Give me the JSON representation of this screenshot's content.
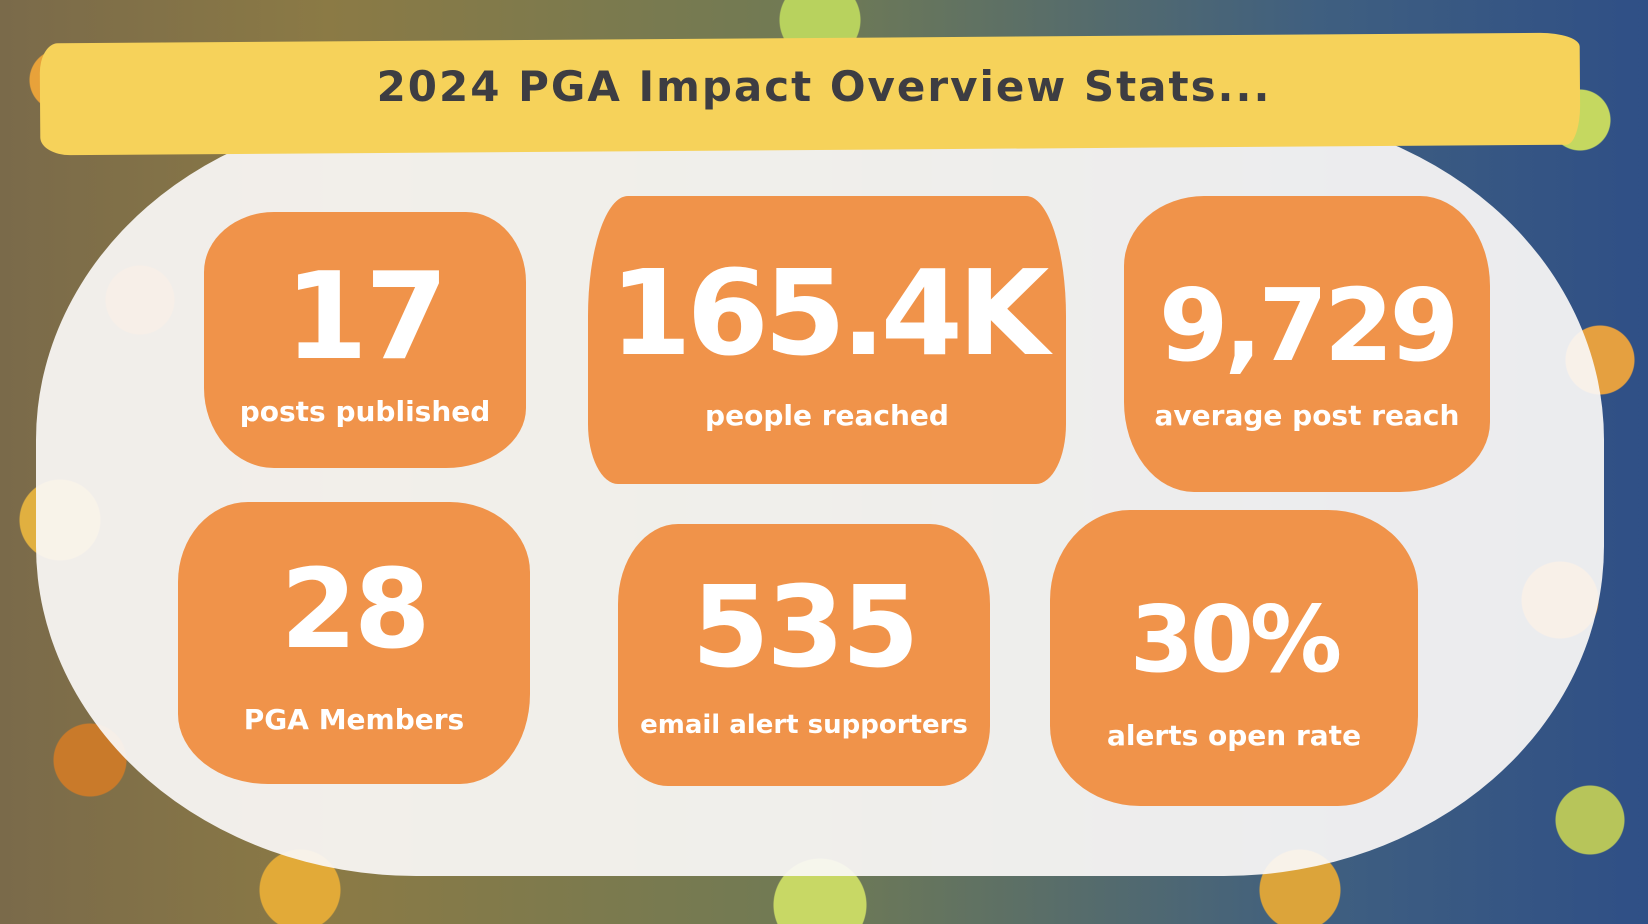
{
  "header": {
    "title": "2024 PGA Impact Overview Stats..."
  },
  "stats": [
    {
      "value": "17",
      "label": "posts published"
    },
    {
      "value": "165.4K",
      "label": "people reached"
    },
    {
      "value": "9,729",
      "label": "average post reach"
    },
    {
      "value": "28",
      "label": "PGA Members"
    },
    {
      "value": "535",
      "label": "email alert supporters"
    },
    {
      "value": "30%",
      "label": "alerts open rate"
    }
  ],
  "colors": {
    "banner": "#f6d25a",
    "card": "#f0934a",
    "panel": "#faf8f6",
    "title_text": "#3d3d42",
    "card_text": "#ffffff"
  }
}
